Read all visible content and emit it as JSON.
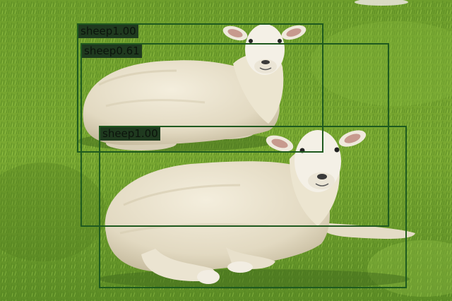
{
  "scene": {
    "colors": {
      "grass_light": "#8cbc3c",
      "grass_mid": "#6a9a2a",
      "grass_dark": "#3f6a1c",
      "wool": "#e9e2cf",
      "wool_shadow": "#c9bfa5",
      "face": "#f3efe4",
      "ear_inner": "#c79a8e",
      "box_stroke": "#1f5a1f",
      "label_bg": "#1f3a1f"
    },
    "icons": [
      "sheep-top",
      "sheep-front"
    ]
  },
  "detections": [
    {
      "label": "sheep",
      "score": "1.00"
    },
    {
      "label": "sheep",
      "score": "0.61"
    },
    {
      "label": "sheep",
      "score": "1.00"
    }
  ]
}
